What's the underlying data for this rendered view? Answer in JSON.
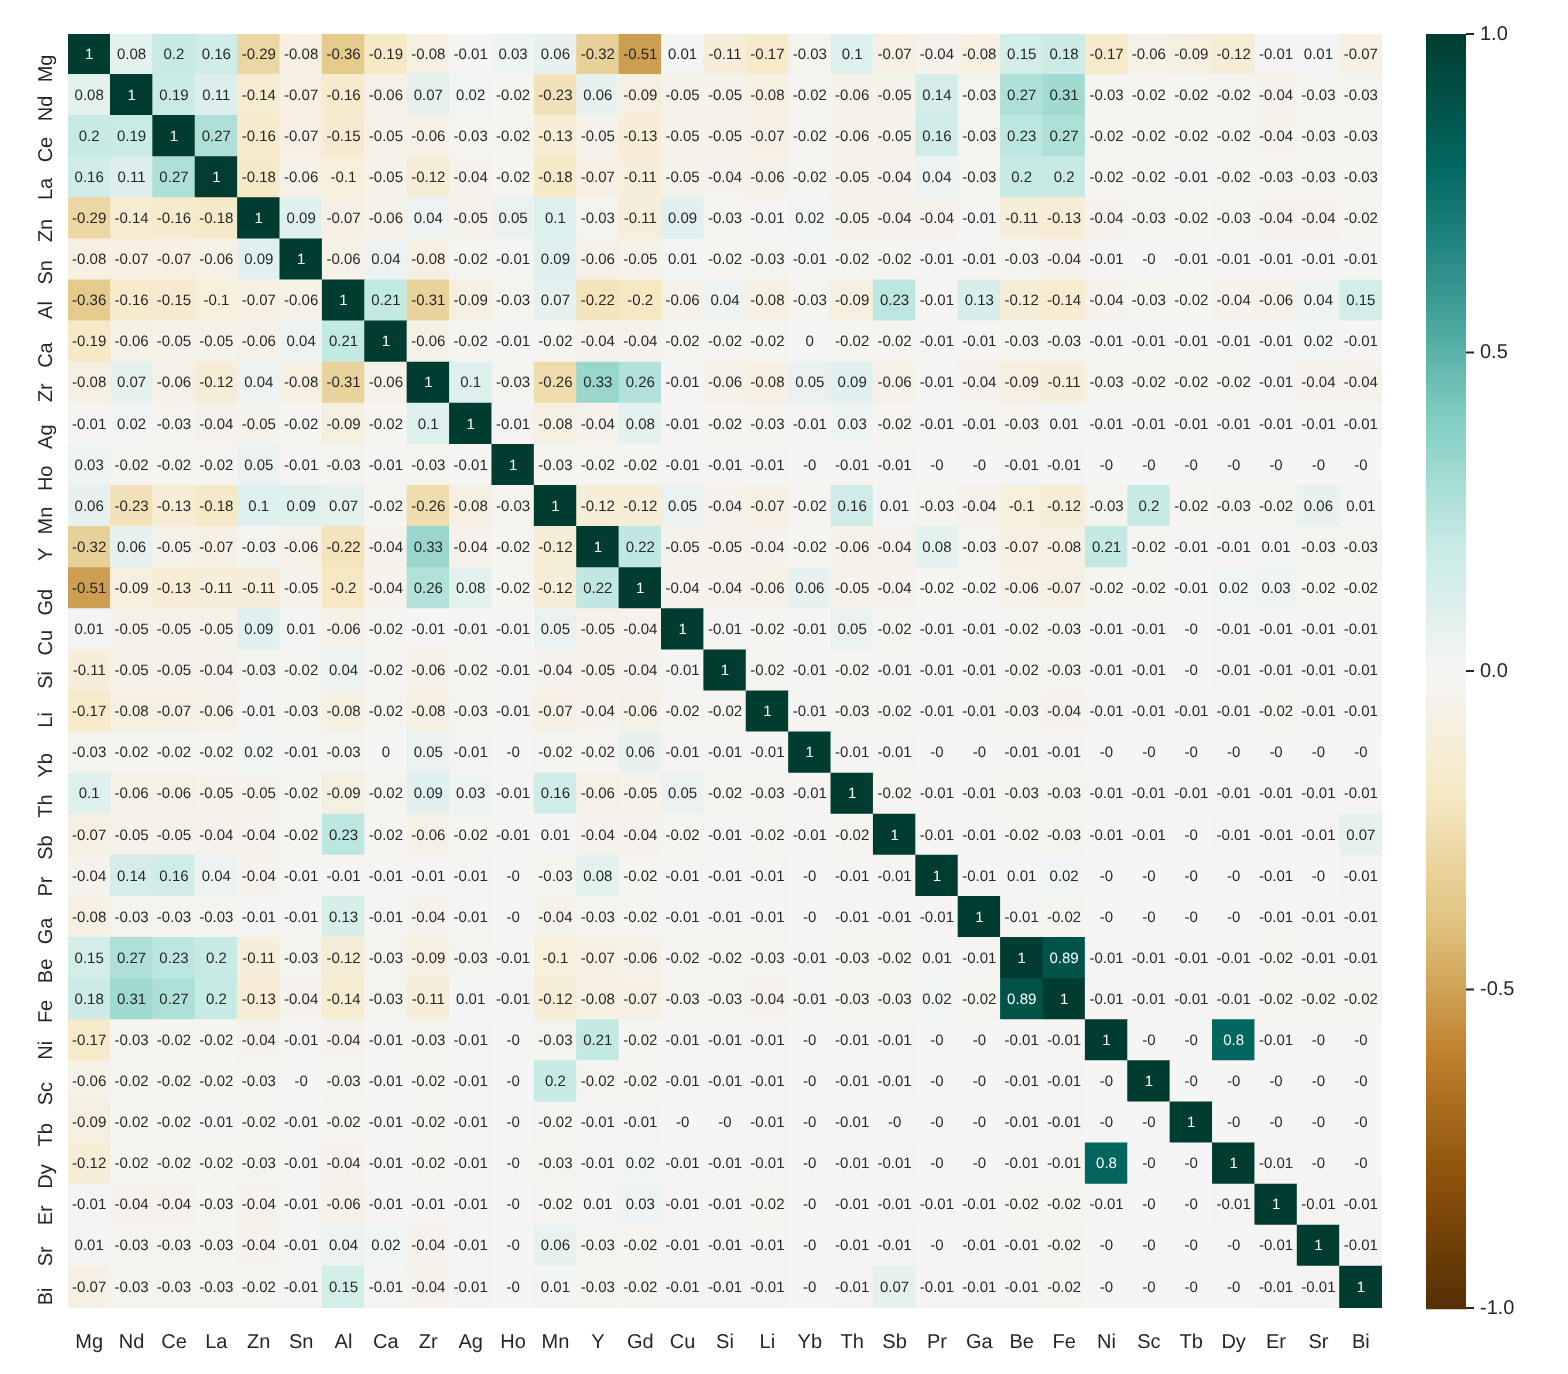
{
  "chart_data": {
    "type": "heatmap",
    "categories": [
      "Mg",
      "Nd",
      "Ce",
      "La",
      "Zn",
      "Sn",
      "Al",
      "Ca",
      "Zr",
      "Ag",
      "Ho",
      "Mn",
      "Y",
      "Gd",
      "Cu",
      "Si",
      "Li",
      "Yb",
      "Th",
      "Sb",
      "Pr",
      "Ga",
      "Be",
      "Fe",
      "Ni",
      "Sc",
      "Tb",
      "Dy",
      "Er",
      "Sr",
      "Bi"
    ],
    "y_categories": [
      "Mg",
      "Nd",
      "Ce",
      "La",
      "Zn",
      "Sn",
      "Al",
      "Ca",
      "Zr",
      "Ag",
      "Ho",
      "Mn",
      "Y",
      "Gd",
      "Cu",
      "Si",
      "Li",
      "Yb",
      "Th",
      "Sb",
      "Pr",
      "Ga",
      "Be",
      "Fe",
      "Ni",
      "Sc",
      "Tb",
      "Dy",
      "Er",
      "Sr",
      "Bi"
    ],
    "cells": [
      [
        1,
        0.08,
        0.2,
        0.16,
        -0.29,
        -0.08,
        -0.36,
        -0.19,
        -0.08,
        -0.01,
        0.03,
        0.06,
        -0.32,
        -0.51,
        0.01,
        -0.11,
        -0.17,
        -0.03,
        0.1,
        -0.07,
        -0.04,
        -0.08,
        0.15,
        0.18,
        -0.17,
        -0.06,
        -0.09,
        -0.12,
        -0.01,
        0.01,
        -0.07
      ],
      [
        0.08,
        1,
        0.19,
        0.11,
        -0.14,
        -0.07,
        -0.16,
        -0.06,
        0.07,
        0.02,
        -0.02,
        -0.23,
        0.06,
        -0.09,
        -0.05,
        -0.05,
        -0.08,
        -0.02,
        -0.06,
        -0.05,
        0.14,
        -0.03,
        0.27,
        0.31,
        -0.03,
        -0.02,
        -0.02,
        -0.02,
        -0.04,
        -0.03,
        -0.03
      ],
      [
        0.2,
        0.19,
        1,
        0.27,
        -0.16,
        -0.07,
        -0.15,
        -0.05,
        -0.06,
        -0.03,
        -0.02,
        -0.13,
        -0.05,
        -0.13,
        -0.05,
        -0.05,
        -0.07,
        -0.02,
        -0.06,
        -0.05,
        0.16,
        -0.03,
        0.23,
        0.27,
        -0.02,
        -0.02,
        -0.02,
        -0.02,
        -0.04,
        -0.03,
        -0.03
      ],
      [
        0.16,
        0.11,
        0.27,
        1,
        -0.18,
        -0.06,
        -0.1,
        -0.05,
        -0.12,
        -0.04,
        -0.02,
        -0.18,
        -0.07,
        -0.11,
        -0.05,
        -0.04,
        -0.06,
        -0.02,
        -0.05,
        -0.04,
        0.04,
        -0.03,
        0.2,
        0.2,
        -0.02,
        -0.02,
        -0.01,
        -0.02,
        -0.03,
        -0.03,
        -0.03
      ],
      [
        -0.29,
        -0.14,
        -0.16,
        -0.18,
        1,
        0.09,
        -0.07,
        -0.06,
        0.04,
        -0.05,
        0.05,
        0.1,
        -0.03,
        -0.11,
        0.09,
        -0.03,
        -0.01,
        0.02,
        -0.05,
        -0.04,
        -0.04,
        -0.01,
        -0.11,
        -0.13,
        -0.04,
        -0.03,
        -0.02,
        -0.03,
        -0.04,
        -0.04,
        -0.02
      ],
      [
        -0.08,
        -0.07,
        -0.07,
        -0.06,
        0.09,
        1,
        -0.06,
        0.04,
        -0.08,
        -0.02,
        -0.01,
        0.09,
        -0.06,
        -0.05,
        0.01,
        -0.02,
        -0.03,
        -0.01,
        -0.02,
        -0.02,
        -0.01,
        -0.01,
        -0.03,
        -0.04,
        -0.01,
        0,
        -0.01,
        -0.01,
        -0.01,
        -0.01,
        -0.01
      ],
      [
        -0.36,
        -0.16,
        -0.15,
        -0.1,
        -0.07,
        -0.06,
        1,
        0.21,
        -0.31,
        -0.09,
        -0.03,
        0.07,
        -0.22,
        -0.2,
        -0.06,
        0.04,
        -0.08,
        -0.03,
        -0.09,
        0.23,
        -0.01,
        0.13,
        -0.12,
        -0.14,
        -0.04,
        -0.03,
        -0.02,
        -0.04,
        -0.06,
        0.04,
        0.15
      ],
      [
        -0.19,
        -0.06,
        -0.05,
        -0.05,
        -0.06,
        0.04,
        0.21,
        1,
        -0.06,
        -0.02,
        -0.01,
        -0.02,
        -0.04,
        -0.04,
        -0.02,
        -0.02,
        -0.02,
        0,
        -0.02,
        -0.02,
        -0.01,
        -0.01,
        -0.03,
        -0.03,
        -0.01,
        -0.01,
        -0.01,
        -0.01,
        -0.01,
        0.02,
        -0.01
      ],
      [
        -0.08,
        0.07,
        -0.06,
        -0.12,
        0.04,
        -0.08,
        -0.31,
        -0.06,
        1,
        0.1,
        -0.03,
        -0.26,
        0.33,
        0.26,
        -0.01,
        -0.06,
        -0.08,
        0.05,
        0.09,
        -0.06,
        -0.01,
        -0.04,
        -0.09,
        -0.11,
        -0.03,
        -0.02,
        -0.02,
        -0.02,
        -0.01,
        -0.04,
        -0.04
      ],
      [
        -0.01,
        0.02,
        -0.03,
        -0.04,
        -0.05,
        -0.02,
        -0.09,
        -0.02,
        0.1,
        1,
        -0.01,
        -0.08,
        -0.04,
        0.08,
        -0.01,
        -0.02,
        -0.03,
        -0.01,
        0.03,
        -0.02,
        -0.01,
        -0.01,
        -0.03,
        0.01,
        -0.01,
        -0.01,
        -0.01,
        -0.01,
        -0.01,
        -0.01,
        -0.01
      ],
      [
        0.03,
        -0.02,
        -0.02,
        -0.02,
        0.05,
        -0.01,
        -0.03,
        -0.01,
        -0.03,
        -0.01,
        1,
        -0.03,
        -0.02,
        -0.02,
        -0.01,
        -0.01,
        -0.01,
        0,
        -0.01,
        -0.01,
        0,
        0,
        -0.01,
        -0.01,
        0,
        0,
        0,
        0,
        0,
        0,
        0
      ],
      [
        0.06,
        -0.23,
        -0.13,
        -0.18,
        0.1,
        0.09,
        0.07,
        -0.02,
        -0.26,
        -0.08,
        -0.03,
        1,
        -0.12,
        -0.12,
        0.05,
        -0.04,
        -0.07,
        -0.02,
        0.16,
        0.01,
        -0.03,
        -0.04,
        -0.1,
        -0.12,
        -0.03,
        0.2,
        -0.02,
        -0.03,
        -0.02,
        0.06,
        0.01
      ],
      [
        -0.32,
        0.06,
        -0.05,
        -0.07,
        -0.03,
        -0.06,
        -0.22,
        -0.04,
        0.33,
        -0.04,
        -0.02,
        -0.12,
        1,
        0.22,
        -0.05,
        -0.05,
        -0.04,
        -0.02,
        -0.06,
        -0.04,
        0.08,
        -0.03,
        -0.07,
        -0.08,
        0.21,
        -0.02,
        -0.01,
        -0.01,
        0.01,
        -0.03,
        -0.03
      ],
      [
        -0.51,
        -0.09,
        -0.13,
        -0.11,
        -0.11,
        -0.05,
        -0.2,
        -0.04,
        0.26,
        0.08,
        -0.02,
        -0.12,
        0.22,
        1,
        -0.04,
        -0.04,
        -0.06,
        0.06,
        -0.05,
        -0.04,
        -0.02,
        -0.02,
        -0.06,
        -0.07,
        -0.02,
        -0.02,
        -0.01,
        0.02,
        0.03,
        -0.02,
        -0.02
      ],
      [
        0.01,
        -0.05,
        -0.05,
        -0.05,
        0.09,
        0.01,
        -0.06,
        -0.02,
        -0.01,
        -0.01,
        -0.01,
        0.05,
        -0.05,
        -0.04,
        1,
        -0.01,
        -0.02,
        -0.01,
        0.05,
        -0.02,
        -0.01,
        -0.01,
        -0.02,
        -0.03,
        -0.01,
        -0.01,
        0,
        -0.01,
        -0.01,
        -0.01,
        -0.01
      ],
      [
        -0.11,
        -0.05,
        -0.05,
        -0.04,
        -0.03,
        -0.02,
        0.04,
        -0.02,
        -0.06,
        -0.02,
        -0.01,
        -0.04,
        -0.05,
        -0.04,
        -0.01,
        1,
        -0.02,
        -0.01,
        -0.02,
        -0.01,
        -0.01,
        -0.01,
        -0.02,
        -0.03,
        -0.01,
        -0.01,
        0,
        -0.01,
        -0.01,
        -0.01,
        -0.01
      ],
      [
        -0.17,
        -0.08,
        -0.07,
        -0.06,
        -0.01,
        -0.03,
        -0.08,
        -0.02,
        -0.08,
        -0.03,
        -0.01,
        -0.07,
        -0.04,
        -0.06,
        -0.02,
        -0.02,
        1,
        -0.01,
        -0.03,
        -0.02,
        -0.01,
        -0.01,
        -0.03,
        -0.04,
        -0.01,
        -0.01,
        -0.01,
        -0.01,
        -0.02,
        -0.01,
        -0.01
      ],
      [
        -0.03,
        -0.02,
        -0.02,
        -0.02,
        0.02,
        -0.01,
        -0.03,
        0,
        0.05,
        -0.01,
        0,
        -0.02,
        -0.02,
        0.06,
        -0.01,
        -0.01,
        -0.01,
        1,
        -0.01,
        -0.01,
        0,
        0,
        -0.01,
        -0.01,
        0,
        0,
        0,
        0,
        0,
        0,
        0
      ],
      [
        0.1,
        -0.06,
        -0.06,
        -0.05,
        -0.05,
        -0.02,
        -0.09,
        -0.02,
        0.09,
        0.03,
        -0.01,
        0.16,
        -0.06,
        -0.05,
        0.05,
        -0.02,
        -0.03,
        -0.01,
        1,
        -0.02,
        -0.01,
        -0.01,
        -0.03,
        -0.03,
        -0.01,
        -0.01,
        -0.01,
        -0.01,
        -0.01,
        -0.01,
        -0.01
      ],
      [
        -0.07,
        -0.05,
        -0.05,
        -0.04,
        -0.04,
        -0.02,
        0.23,
        -0.02,
        -0.06,
        -0.02,
        -0.01,
        0.01,
        -0.04,
        -0.04,
        -0.02,
        -0.01,
        -0.02,
        -0.01,
        -0.02,
        1,
        -0.01,
        -0.01,
        -0.02,
        -0.03,
        -0.01,
        -0.01,
        0,
        -0.01,
        -0.01,
        -0.01,
        0.07
      ],
      [
        -0.04,
        0.14,
        0.16,
        0.04,
        -0.04,
        -0.01,
        -0.01,
        -0.01,
        -0.01,
        -0.01,
        0,
        -0.03,
        0.08,
        -0.02,
        -0.01,
        -0.01,
        -0.01,
        0,
        -0.01,
        -0.01,
        1,
        -0.01,
        0.01,
        0.02,
        0,
        0,
        0,
        0,
        -0.01,
        0,
        -0.01
      ],
      [
        -0.08,
        -0.03,
        -0.03,
        -0.03,
        -0.01,
        -0.01,
        0.13,
        -0.01,
        -0.04,
        -0.01,
        0,
        -0.04,
        -0.03,
        -0.02,
        -0.01,
        -0.01,
        -0.01,
        0,
        -0.01,
        -0.01,
        -0.01,
        1,
        -0.01,
        -0.02,
        0,
        0,
        0,
        0,
        -0.01,
        -0.01,
        -0.01
      ],
      [
        0.15,
        0.27,
        0.23,
        0.2,
        -0.11,
        -0.03,
        -0.12,
        -0.03,
        -0.09,
        -0.03,
        -0.01,
        -0.1,
        -0.07,
        -0.06,
        -0.02,
        -0.02,
        -0.03,
        -0.01,
        -0.03,
        -0.02,
        0.01,
        -0.01,
        1,
        0.89,
        -0.01,
        -0.01,
        -0.01,
        -0.01,
        -0.02,
        -0.01,
        -0.01
      ],
      [
        0.18,
        0.31,
        0.27,
        0.2,
        -0.13,
        -0.04,
        -0.14,
        -0.03,
        -0.11,
        0.01,
        -0.01,
        -0.12,
        -0.08,
        -0.07,
        -0.03,
        -0.03,
        -0.04,
        -0.01,
        -0.03,
        -0.03,
        0.02,
        -0.02,
        0.89,
        1,
        -0.01,
        -0.01,
        -0.01,
        -0.01,
        -0.02,
        -0.02,
        -0.02
      ],
      [
        -0.17,
        -0.03,
        -0.02,
        -0.02,
        -0.04,
        -0.01,
        -0.04,
        -0.01,
        -0.03,
        -0.01,
        0,
        -0.03,
        0.21,
        -0.02,
        -0.01,
        -0.01,
        -0.01,
        0,
        -0.01,
        -0.01,
        0,
        0,
        -0.01,
        -0.01,
        1,
        0,
        0,
        0.8,
        -0.01,
        0,
        0
      ],
      [
        -0.06,
        -0.02,
        -0.02,
        -0.02,
        -0.03,
        0,
        -0.03,
        -0.01,
        -0.02,
        -0.01,
        0,
        0.2,
        -0.02,
        -0.02,
        -0.01,
        -0.01,
        -0.01,
        0,
        -0.01,
        -0.01,
        0,
        0,
        -0.01,
        -0.01,
        0,
        1,
        0,
        0,
        0,
        0,
        0
      ],
      [
        -0.09,
        -0.02,
        -0.02,
        -0.01,
        -0.02,
        -0.01,
        -0.02,
        -0.01,
        -0.02,
        -0.01,
        0,
        -0.02,
        -0.01,
        -0.01,
        0,
        0,
        -0.01,
        0,
        -0.01,
        0,
        0,
        0,
        -0.01,
        -0.01,
        0,
        0,
        1,
        0,
        0,
        0,
        0
      ],
      [
        -0.12,
        -0.02,
        -0.02,
        -0.02,
        -0.03,
        -0.01,
        -0.04,
        -0.01,
        -0.02,
        -0.01,
        0,
        -0.03,
        -0.01,
        0.02,
        -0.01,
        -0.01,
        -0.01,
        0,
        -0.01,
        -0.01,
        0,
        0,
        -0.01,
        -0.01,
        0.8,
        0,
        0,
        1,
        -0.01,
        0,
        0
      ],
      [
        -0.01,
        -0.04,
        -0.04,
        -0.03,
        -0.04,
        -0.01,
        -0.06,
        -0.01,
        -0.01,
        -0.01,
        0,
        -0.02,
        0.01,
        0.03,
        -0.01,
        -0.01,
        -0.02,
        0,
        -0.01,
        -0.01,
        -0.01,
        -0.01,
        -0.02,
        -0.02,
        -0.01,
        0,
        0,
        -0.01,
        1,
        -0.01,
        -0.01
      ],
      [
        0.01,
        -0.03,
        -0.03,
        -0.03,
        -0.04,
        -0.01,
        0.04,
        0.02,
        -0.04,
        -0.01,
        0,
        0.06,
        -0.03,
        -0.02,
        -0.01,
        -0.01,
        -0.01,
        0,
        -0.01,
        -0.01,
        0,
        -0.01,
        -0.01,
        -0.02,
        0,
        0,
        0,
        0,
        -0.01,
        1,
        -0.01
      ],
      [
        -0.07,
        -0.03,
        -0.03,
        -0.03,
        -0.02,
        -0.01,
        0.15,
        -0.01,
        -0.04,
        -0.01,
        0,
        0.01,
        -0.03,
        -0.02,
        -0.01,
        -0.01,
        -0.01,
        0,
        -0.01,
        0.07,
        -0.01,
        -0.01,
        -0.01,
        -0.02,
        0,
        0,
        0,
        0,
        -0.01,
        -0.01,
        1
      ]
    ],
    "data_labels": true,
    "cell_labels": [
      [
        "1",
        "0.08",
        "0.2",
        "0.16",
        "-0.29",
        "-0.08",
        "-0.36",
        "-0.19",
        "-0.08",
        "-0.01",
        "0.03",
        "0.06",
        "-0.32",
        "-0.51",
        "0.01",
        "-0.11",
        "-0.17",
        "-0.03",
        "0.1",
        "-0.07",
        "-0.04",
        "-0.08",
        "0.15",
        "0.18",
        "-0.17",
        "-0.06",
        "-0.09",
        "-0.12",
        "-0.01",
        "0.01",
        "-0.07"
      ],
      [
        "0.08",
        "1",
        "0.19",
        "0.11",
        "-0.14",
        "-0.07",
        "-0.16",
        "-0.06",
        "0.07",
        "0.02",
        "-0.02",
        "-0.23",
        "0.06",
        "-0.09",
        "-0.05",
        "-0.05",
        "-0.08",
        "-0.02",
        "-0.06",
        "-0.05",
        "0.14",
        "-0.03",
        "0.27",
        "0.31",
        "-0.03",
        "-0.02",
        "-0.02",
        "-0.02",
        "-0.04",
        "-0.03",
        "-0.03"
      ],
      [
        "0.2",
        "0.19",
        "1",
        "0.27",
        "-0.16",
        "-0.07",
        "-0.15",
        "-0.05",
        "-0.06",
        "-0.03",
        "-0.02",
        "-0.13",
        "-0.05",
        "-0.13",
        "-0.05",
        "-0.05",
        "-0.07",
        "-0.02",
        "-0.06",
        "-0.05",
        "0.16",
        "-0.03",
        "0.23",
        "0.27",
        "-0.02",
        "-0.02",
        "-0.02",
        "-0.02",
        "-0.04",
        "-0.03",
        "-0.03"
      ],
      [
        "0.16",
        "0.11",
        "0.27",
        "1",
        "-0.18",
        "-0.06",
        "-0.1",
        "-0.05",
        "-0.12",
        "-0.04",
        "-0.02",
        "-0.18",
        "-0.07",
        "-0.11",
        "-0.05",
        "-0.04",
        "-0.06",
        "-0.02",
        "-0.05",
        "-0.04",
        "0.04",
        "-0.03",
        "0.2",
        "0.2",
        "-0.02",
        "-0.02",
        "-0.01",
        "-0.02",
        "-0.03",
        "-0.03",
        "-0.03"
      ],
      [
        "-0.29",
        "-0.14",
        "-0.16",
        "-0.18",
        "1",
        "0.09",
        "-0.07",
        "-0.06",
        "0.04",
        "-0.05",
        "0.05",
        "0.1",
        "-0.03",
        "-0.11",
        "0.09",
        "-0.03",
        "-0.01",
        "0.02",
        "-0.05",
        "-0.04",
        "-0.04",
        "-0.01",
        "-0.11",
        "-0.13",
        "-0.04",
        "-0.03",
        "-0.02",
        "-0.03",
        "-0.04",
        "-0.04",
        "-0.02"
      ],
      [
        "-0.08",
        "-0.07",
        "-0.07",
        "-0.06",
        "0.09",
        "1",
        "-0.06",
        "0.04",
        "-0.08",
        "-0.02",
        "-0.01",
        "0.09",
        "-0.06",
        "-0.05",
        "0.01",
        "-0.02",
        "-0.03",
        "-0.01",
        "-0.02",
        "-0.02",
        "-0.01",
        "-0.01",
        "-0.03",
        "-0.04",
        "-0.01",
        "-0",
        "-0.01",
        "-0.01",
        "-0.01",
        "-0.01",
        "-0.01"
      ],
      [
        "-0.36",
        "-0.16",
        "-0.15",
        "-0.1",
        "-0.07",
        "-0.06",
        "1",
        "0.21",
        "-0.31",
        "-0.09",
        "-0.03",
        "0.07",
        "-0.22",
        "-0.2",
        "-0.06",
        "0.04",
        "-0.08",
        "-0.03",
        "-0.09",
        "0.23",
        "-0.01",
        "0.13",
        "-0.12",
        "-0.14",
        "-0.04",
        "-0.03",
        "-0.02",
        "-0.04",
        "-0.06",
        "0.04",
        "0.15"
      ],
      [
        "-0.19",
        "-0.06",
        "-0.05",
        "-0.05",
        "-0.06",
        "0.04",
        "0.21",
        "1",
        "-0.06",
        "-0.02",
        "-0.01",
        "-0.02",
        "-0.04",
        "-0.04",
        "-0.02",
        "-0.02",
        "-0.02",
        "0",
        "-0.02",
        "-0.02",
        "-0.01",
        "-0.01",
        "-0.03",
        "-0.03",
        "-0.01",
        "-0.01",
        "-0.01",
        "-0.01",
        "-0.01",
        "0.02",
        "-0.01"
      ],
      [
        "-0.08",
        "0.07",
        "-0.06",
        "-0.12",
        "0.04",
        "-0.08",
        "-0.31",
        "-0.06",
        "1",
        "0.1",
        "-0.03",
        "-0.26",
        "0.33",
        "0.26",
        "-0.01",
        "-0.06",
        "-0.08",
        "0.05",
        "0.09",
        "-0.06",
        "-0.01",
        "-0.04",
        "-0.09",
        "-0.11",
        "-0.03",
        "-0.02",
        "-0.02",
        "-0.02",
        "-0.01",
        "-0.04",
        "-0.04"
      ],
      [
        "-0.01",
        "0.02",
        "-0.03",
        "-0.04",
        "-0.05",
        "-0.02",
        "-0.09",
        "-0.02",
        "0.1",
        "1",
        "-0.01",
        "-0.08",
        "-0.04",
        "0.08",
        "-0.01",
        "-0.02",
        "-0.03",
        "-0.01",
        "0.03",
        "-0.02",
        "-0.01",
        "-0.01",
        "-0.03",
        "0.01",
        "-0.01",
        "-0.01",
        "-0.01",
        "-0.01",
        "-0.01",
        "-0.01",
        "-0.01"
      ],
      [
        "0.03",
        "-0.02",
        "-0.02",
        "-0.02",
        "0.05",
        "-0.01",
        "-0.03",
        "-0.01",
        "-0.03",
        "-0.01",
        "1",
        "-0.03",
        "-0.02",
        "-0.02",
        "-0.01",
        "-0.01",
        "-0.01",
        "-0",
        "-0.01",
        "-0.01",
        "-0",
        "-0",
        "-0.01",
        "-0.01",
        "-0",
        "-0",
        "-0",
        "-0",
        "-0",
        "-0",
        "-0"
      ],
      [
        "0.06",
        "-0.23",
        "-0.13",
        "-0.18",
        "0.1",
        "0.09",
        "0.07",
        "-0.02",
        "-0.26",
        "-0.08",
        "-0.03",
        "1",
        "-0.12",
        "-0.12",
        "0.05",
        "-0.04",
        "-0.07",
        "-0.02",
        "0.16",
        "0.01",
        "-0.03",
        "-0.04",
        "-0.1",
        "-0.12",
        "-0.03",
        "0.2",
        "-0.02",
        "-0.03",
        "-0.02",
        "0.06",
        "0.01"
      ],
      [
        "-0.32",
        "0.06",
        "-0.05",
        "-0.07",
        "-0.03",
        "-0.06",
        "-0.22",
        "-0.04",
        "0.33",
        "-0.04",
        "-0.02",
        "-0.12",
        "1",
        "0.22",
        "-0.05",
        "-0.05",
        "-0.04",
        "-0.02",
        "-0.06",
        "-0.04",
        "0.08",
        "-0.03",
        "-0.07",
        "-0.08",
        "0.21",
        "-0.02",
        "-0.01",
        "-0.01",
        "0.01",
        "-0.03",
        "-0.03"
      ],
      [
        "-0.51",
        "-0.09",
        "-0.13",
        "-0.11",
        "-0.11",
        "-0.05",
        "-0.2",
        "-0.04",
        "0.26",
        "0.08",
        "-0.02",
        "-0.12",
        "0.22",
        "1",
        "-0.04",
        "-0.04",
        "-0.06",
        "0.06",
        "-0.05",
        "-0.04",
        "-0.02",
        "-0.02",
        "-0.06",
        "-0.07",
        "-0.02",
        "-0.02",
        "-0.01",
        "0.02",
        "0.03",
        "-0.02",
        "-0.02"
      ],
      [
        "0.01",
        "-0.05",
        "-0.05",
        "-0.05",
        "0.09",
        "0.01",
        "-0.06",
        "-0.02",
        "-0.01",
        "-0.01",
        "-0.01",
        "0.05",
        "-0.05",
        "-0.04",
        "1",
        "-0.01",
        "-0.02",
        "-0.01",
        "0.05",
        "-0.02",
        "-0.01",
        "-0.01",
        "-0.02",
        "-0.03",
        "-0.01",
        "-0.01",
        "-0",
        "-0.01",
        "-0.01",
        "-0.01",
        "-0.01"
      ],
      [
        "-0.11",
        "-0.05",
        "-0.05",
        "-0.04",
        "-0.03",
        "-0.02",
        "0.04",
        "-0.02",
        "-0.06",
        "-0.02",
        "-0.01",
        "-0.04",
        "-0.05",
        "-0.04",
        "-0.01",
        "1",
        "-0.02",
        "-0.01",
        "-0.02",
        "-0.01",
        "-0.01",
        "-0.01",
        "-0.02",
        "-0.03",
        "-0.01",
        "-0.01",
        "-0",
        "-0.01",
        "-0.01",
        "-0.01",
        "-0.01"
      ],
      [
        "-0.17",
        "-0.08",
        "-0.07",
        "-0.06",
        "-0.01",
        "-0.03",
        "-0.08",
        "-0.02",
        "-0.08",
        "-0.03",
        "-0.01",
        "-0.07",
        "-0.04",
        "-0.06",
        "-0.02",
        "-0.02",
        "1",
        "-0.01",
        "-0.03",
        "-0.02",
        "-0.01",
        "-0.01",
        "-0.03",
        "-0.04",
        "-0.01",
        "-0.01",
        "-0.01",
        "-0.01",
        "-0.02",
        "-0.01",
        "-0.01"
      ],
      [
        "-0.03",
        "-0.02",
        "-0.02",
        "-0.02",
        "0.02",
        "-0.01",
        "-0.03",
        "0",
        "0.05",
        "-0.01",
        "-0",
        "-0.02",
        "-0.02",
        "0.06",
        "-0.01",
        "-0.01",
        "-0.01",
        "1",
        "-0.01",
        "-0.01",
        "-0",
        "-0",
        "-0.01",
        "-0.01",
        "-0",
        "-0",
        "-0",
        "-0",
        "-0",
        "-0",
        "-0"
      ],
      [
        "0.1",
        "-0.06",
        "-0.06",
        "-0.05",
        "-0.05",
        "-0.02",
        "-0.09",
        "-0.02",
        "0.09",
        "0.03",
        "-0.01",
        "0.16",
        "-0.06",
        "-0.05",
        "0.05",
        "-0.02",
        "-0.03",
        "-0.01",
        "1",
        "-0.02",
        "-0.01",
        "-0.01",
        "-0.03",
        "-0.03",
        "-0.01",
        "-0.01",
        "-0.01",
        "-0.01",
        "-0.01",
        "-0.01",
        "-0.01"
      ],
      [
        "-0.07",
        "-0.05",
        "-0.05",
        "-0.04",
        "-0.04",
        "-0.02",
        "0.23",
        "-0.02",
        "-0.06",
        "-0.02",
        "-0.01",
        "0.01",
        "-0.04",
        "-0.04",
        "-0.02",
        "-0.01",
        "-0.02",
        "-0.01",
        "-0.02",
        "1",
        "-0.01",
        "-0.01",
        "-0.02",
        "-0.03",
        "-0.01",
        "-0.01",
        "-0",
        "-0.01",
        "-0.01",
        "-0.01",
        "0.07"
      ],
      [
        "-0.04",
        "0.14",
        "0.16",
        "0.04",
        "-0.04",
        "-0.01",
        "-0.01",
        "-0.01",
        "-0.01",
        "-0.01",
        "-0",
        "-0.03",
        "0.08",
        "-0.02",
        "-0.01",
        "-0.01",
        "-0.01",
        "-0",
        "-0.01",
        "-0.01",
        "1",
        "-0.01",
        "0.01",
        "0.02",
        "-0",
        "-0",
        "-0",
        "-0",
        "-0.01",
        "-0",
        "-0.01"
      ],
      [
        "-0.08",
        "-0.03",
        "-0.03",
        "-0.03",
        "-0.01",
        "-0.01",
        "0.13",
        "-0.01",
        "-0.04",
        "-0.01",
        "-0",
        "-0.04",
        "-0.03",
        "-0.02",
        "-0.01",
        "-0.01",
        "-0.01",
        "-0",
        "-0.01",
        "-0.01",
        "-0.01",
        "1",
        "-0.01",
        "-0.02",
        "-0",
        "-0",
        "-0",
        "-0",
        "-0.01",
        "-0.01",
        "-0.01"
      ],
      [
        "0.15",
        "0.27",
        "0.23",
        "0.2",
        "-0.11",
        "-0.03",
        "-0.12",
        "-0.03",
        "-0.09",
        "-0.03",
        "-0.01",
        "-0.1",
        "-0.07",
        "-0.06",
        "-0.02",
        "-0.02",
        "-0.03",
        "-0.01",
        "-0.03",
        "-0.02",
        "0.01",
        "-0.01",
        "1",
        "0.89",
        "-0.01",
        "-0.01",
        "-0.01",
        "-0.01",
        "-0.02",
        "-0.01",
        "-0.01"
      ],
      [
        "0.18",
        "0.31",
        "0.27",
        "0.2",
        "-0.13",
        "-0.04",
        "-0.14",
        "-0.03",
        "-0.11",
        "0.01",
        "-0.01",
        "-0.12",
        "-0.08",
        "-0.07",
        "-0.03",
        "-0.03",
        "-0.04",
        "-0.01",
        "-0.03",
        "-0.03",
        "0.02",
        "-0.02",
        "0.89",
        "1",
        "-0.01",
        "-0.01",
        "-0.01",
        "-0.01",
        "-0.02",
        "-0.02",
        "-0.02"
      ],
      [
        "-0.17",
        "-0.03",
        "-0.02",
        "-0.02",
        "-0.04",
        "-0.01",
        "-0.04",
        "-0.01",
        "-0.03",
        "-0.01",
        "-0",
        "-0.03",
        "0.21",
        "-0.02",
        "-0.01",
        "-0.01",
        "-0.01",
        "-0",
        "-0.01",
        "-0.01",
        "-0",
        "-0",
        "-0.01",
        "-0.01",
        "1",
        "-0",
        "-0",
        "0.8",
        "-0.01",
        "-0",
        "-0"
      ],
      [
        "-0.06",
        "-0.02",
        "-0.02",
        "-0.02",
        "-0.03",
        "-0",
        "-0.03",
        "-0.01",
        "-0.02",
        "-0.01",
        "-0",
        "0.2",
        "-0.02",
        "-0.02",
        "-0.01",
        "-0.01",
        "-0.01",
        "-0",
        "-0.01",
        "-0.01",
        "-0",
        "-0",
        "-0.01",
        "-0.01",
        "-0",
        "1",
        "-0",
        "-0",
        "-0",
        "-0",
        "-0"
      ],
      [
        "-0.09",
        "-0.02",
        "-0.02",
        "-0.01",
        "-0.02",
        "-0.01",
        "-0.02",
        "-0.01",
        "-0.02",
        "-0.01",
        "-0",
        "-0.02",
        "-0.01",
        "-0.01",
        "-0",
        "-0",
        "-0.01",
        "-0",
        "-0.01",
        "-0",
        "-0",
        "-0",
        "-0.01",
        "-0.01",
        "-0",
        "-0",
        "1",
        "-0",
        "-0",
        "-0",
        "-0"
      ],
      [
        "-0.12",
        "-0.02",
        "-0.02",
        "-0.02",
        "-0.03",
        "-0.01",
        "-0.04",
        "-0.01",
        "-0.02",
        "-0.01",
        "-0",
        "-0.03",
        "-0.01",
        "0.02",
        "-0.01",
        "-0.01",
        "-0.01",
        "-0",
        "-0.01",
        "-0.01",
        "-0",
        "-0",
        "-0.01",
        "-0.01",
        "0.8",
        "-0",
        "-0",
        "1",
        "-0.01",
        "-0",
        "-0"
      ],
      [
        "-0.01",
        "-0.04",
        "-0.04",
        "-0.03",
        "-0.04",
        "-0.01",
        "-0.06",
        "-0.01",
        "-0.01",
        "-0.01",
        "-0",
        "-0.02",
        "0.01",
        "0.03",
        "-0.01",
        "-0.01",
        "-0.02",
        "-0",
        "-0.01",
        "-0.01",
        "-0.01",
        "-0.01",
        "-0.02",
        "-0.02",
        "-0.01",
        "-0",
        "-0",
        "-0.01",
        "1",
        "-0.01",
        "-0.01"
      ],
      [
        "0.01",
        "-0.03",
        "-0.03",
        "-0.03",
        "-0.04",
        "-0.01",
        "0.04",
        "0.02",
        "-0.04",
        "-0.01",
        "-0",
        "0.06",
        "-0.03",
        "-0.02",
        "-0.01",
        "-0.01",
        "-0.01",
        "-0",
        "-0.01",
        "-0.01",
        "-0",
        "-0.01",
        "-0.01",
        "-0.02",
        "-0",
        "-0",
        "-0",
        "-0",
        "-0.01",
        "1",
        "-0.01"
      ],
      [
        "-0.07",
        "-0.03",
        "-0.03",
        "-0.03",
        "-0.02",
        "-0.01",
        "0.15",
        "-0.01",
        "-0.04",
        "-0.01",
        "-0",
        "0.01",
        "-0.03",
        "-0.02",
        "-0.01",
        "-0.01",
        "-0.01",
        "-0",
        "-0.01",
        "0.07",
        "-0.01",
        "-0.01",
        "-0.01",
        "-0.02",
        "-0",
        "-0",
        "-0",
        "-0",
        "-0.01",
        "-0.01",
        "1"
      ]
    ],
    "clim": [
      -1,
      1
    ],
    "cticks": [
      {
        "value": -1,
        "label": "-1.0"
      },
      {
        "value": -0.5,
        "label": "-0.5"
      },
      {
        "value": 0,
        "label": "0.0"
      },
      {
        "value": 0.5,
        "label": "0.5"
      },
      {
        "value": 1,
        "label": "1.0"
      }
    ]
  }
}
